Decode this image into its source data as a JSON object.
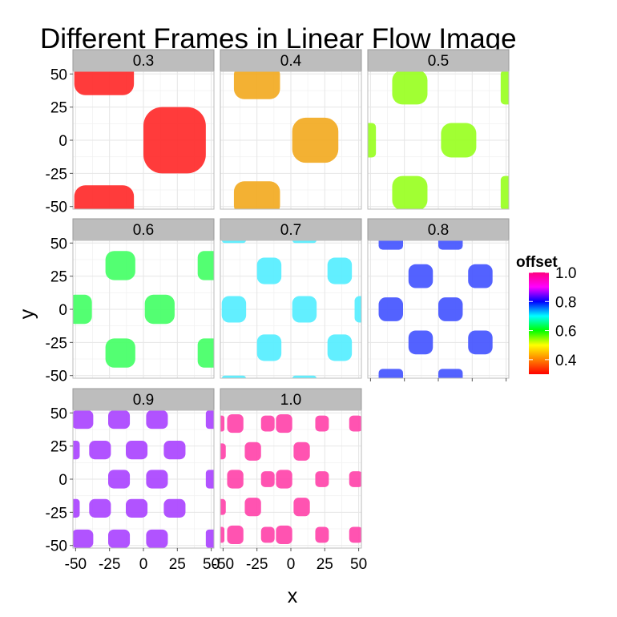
{
  "chart_data": {
    "type": "heatmap",
    "title": "Different Frames in Linear Flow Image",
    "xlabel": "x",
    "ylabel": "y",
    "xlim": [
      -52,
      52
    ],
    "ylim": [
      -52,
      52
    ],
    "x_ticks": [
      -50,
      -25,
      0,
      25,
      50
    ],
    "y_ticks": [
      -50,
      -25,
      0,
      25,
      50
    ],
    "x_tick_labels": [
      "-50",
      "-25",
      "0",
      "25",
      "50"
    ],
    "y_tick_labels": [
      "-50",
      "-25",
      "0",
      "25",
      "50"
    ],
    "panels": [
      {
        "label": "0.3",
        "offset": 0.3,
        "color": "#ff2a2a",
        "blobs": [
          [
            -29,
            48,
            22,
            14
          ],
          [
            23,
            0,
            23,
            25
          ],
          [
            -29,
            -48,
            22,
            14
          ]
        ]
      },
      {
        "label": "0.4",
        "offset": 0.4,
        "color": "#f2aa22",
        "blobs": [
          [
            -25,
            44,
            17,
            13
          ],
          [
            18,
            0,
            17,
            17
          ],
          [
            -25,
            -44,
            17,
            13
          ]
        ]
      },
      {
        "label": "0.5",
        "offset": 0.5,
        "color": "#99ff22",
        "blobs": [
          [
            -21,
            40,
            13,
            13
          ],
          [
            15,
            0,
            13,
            13
          ],
          [
            -21,
            -40,
            13,
            13
          ],
          [
            51,
            40,
            5,
            13
          ],
          [
            -51,
            0,
            5,
            13
          ],
          [
            51,
            -40,
            5,
            13
          ]
        ]
      },
      {
        "label": "0.6",
        "offset": 0.6,
        "color": "#44ff66",
        "blobs": [
          [
            -17,
            33,
            11,
            11
          ],
          [
            12,
            0,
            11,
            11
          ],
          [
            -17,
            -33,
            11,
            11
          ],
          [
            -47,
            0,
            9,
            11
          ],
          [
            48,
            33,
            8,
            11
          ],
          [
            48,
            -33,
            8,
            11
          ]
        ]
      },
      {
        "label": "0.7",
        "offset": 0.7,
        "color": "#55eeff",
        "blobs": [
          [
            -16,
            29,
            9,
            10
          ],
          [
            10,
            0,
            9,
            10
          ],
          [
            -16,
            -29,
            9,
            10
          ],
          [
            -42,
            0,
            9,
            10
          ],
          [
            36,
            29,
            9,
            10
          ],
          [
            36,
            -29,
            9,
            10
          ],
          [
            -42,
            54,
            9,
            4
          ],
          [
            10,
            54,
            9,
            4
          ],
          [
            -42,
            -54,
            9,
            4
          ],
          [
            10,
            -54,
            9,
            4
          ],
          [
            53,
            0,
            6,
            10
          ]
        ]
      },
      {
        "label": "0.8",
        "offset": 0.8,
        "color": "#4455ff",
        "blobs": [
          [
            -13,
            25,
            9,
            9
          ],
          [
            9,
            0,
            9,
            9
          ],
          [
            -13,
            -25,
            9,
            9
          ],
          [
            -35,
            0,
            9,
            9
          ],
          [
            31,
            25,
            9,
            9
          ],
          [
            31,
            -25,
            9,
            9
          ],
          [
            -35,
            50,
            9,
            5
          ],
          [
            9,
            50,
            9,
            5
          ],
          [
            -35,
            -50,
            9,
            5
          ],
          [
            9,
            -50,
            9,
            5
          ]
        ]
      },
      {
        "label": "0.9",
        "offset": 0.9,
        "color": "#aa44ff",
        "blobs": [
          [
            10,
            45,
            8,
            7
          ],
          [
            -45,
            45,
            8,
            7
          ],
          [
            -18,
            45,
            8,
            7
          ],
          [
            -32,
            22,
            8,
            7
          ],
          [
            -5,
            22,
            8,
            7
          ],
          [
            23,
            22,
            8,
            7
          ],
          [
            -18,
            0,
            8,
            7
          ],
          [
            10,
            0,
            8,
            7
          ],
          [
            -32,
            -22,
            8,
            7
          ],
          [
            -5,
            -22,
            8,
            7
          ],
          [
            23,
            -22,
            8,
            7
          ],
          [
            -18,
            -45,
            8,
            7
          ],
          [
            10,
            -45,
            8,
            7
          ],
          [
            -45,
            -45,
            8,
            7
          ],
          [
            50,
            45,
            4,
            7
          ],
          [
            -51,
            22,
            4,
            7
          ],
          [
            50,
            0,
            4,
            7
          ],
          [
            -51,
            -22,
            4,
            7
          ],
          [
            50,
            -45,
            4,
            7
          ]
        ]
      },
      {
        "label": "1.0",
        "offset": 1.0,
        "color": "#ff44aa",
        "blobs": [
          [
            -5,
            42,
            6,
            7
          ],
          [
            -41,
            42,
            6,
            7
          ],
          [
            -28,
            21,
            6,
            7
          ],
          [
            8,
            21,
            6,
            7
          ],
          [
            -5,
            0,
            6,
            7
          ],
          [
            -41,
            0,
            6,
            7
          ],
          [
            -28,
            -21,
            6,
            7
          ],
          [
            8,
            -21,
            6,
            7
          ],
          [
            -5,
            -42,
            6,
            7
          ],
          [
            -41,
            -42,
            6,
            7
          ],
          [
            -17,
            42,
            5,
            6
          ],
          [
            23,
            42,
            5,
            6
          ],
          [
            -17,
            0,
            5,
            6
          ],
          [
            23,
            0,
            5,
            6
          ],
          [
            -17,
            -42,
            5,
            6
          ],
          [
            23,
            -42,
            5,
            6
          ],
          [
            -52,
            21,
            4,
            6
          ],
          [
            -52,
            -21,
            4,
            6
          ],
          [
            48,
            42,
            5,
            6
          ],
          [
            48,
            0,
            5,
            6
          ],
          [
            48,
            -42,
            5,
            6
          ],
          [
            -52,
            42,
            3,
            6
          ],
          [
            -52,
            -42,
            3,
            6
          ]
        ]
      }
    ],
    "legend": {
      "title": "offset",
      "range": [
        0.3,
        1.0
      ],
      "labels": [
        "1.0",
        "0.8",
        "0.6",
        "0.4"
      ],
      "label_values": [
        1.0,
        0.8,
        0.6,
        0.4
      ],
      "colors": [
        "#ff0000",
        "#ff8000",
        "#ffff00",
        "#00ff00",
        "#00ffff",
        "#0000ff",
        "#ff00ff",
        "#ff0080"
      ]
    },
    "colors": {
      "panel_bg": "#ffffff",
      "grid_major": "#e6e6e6",
      "grid_minor": "#f2f2f2",
      "strip_bg": "#bdbdbd",
      "strip_border": "#9a9a9a",
      "panel_border": "#bbbbbb"
    }
  }
}
